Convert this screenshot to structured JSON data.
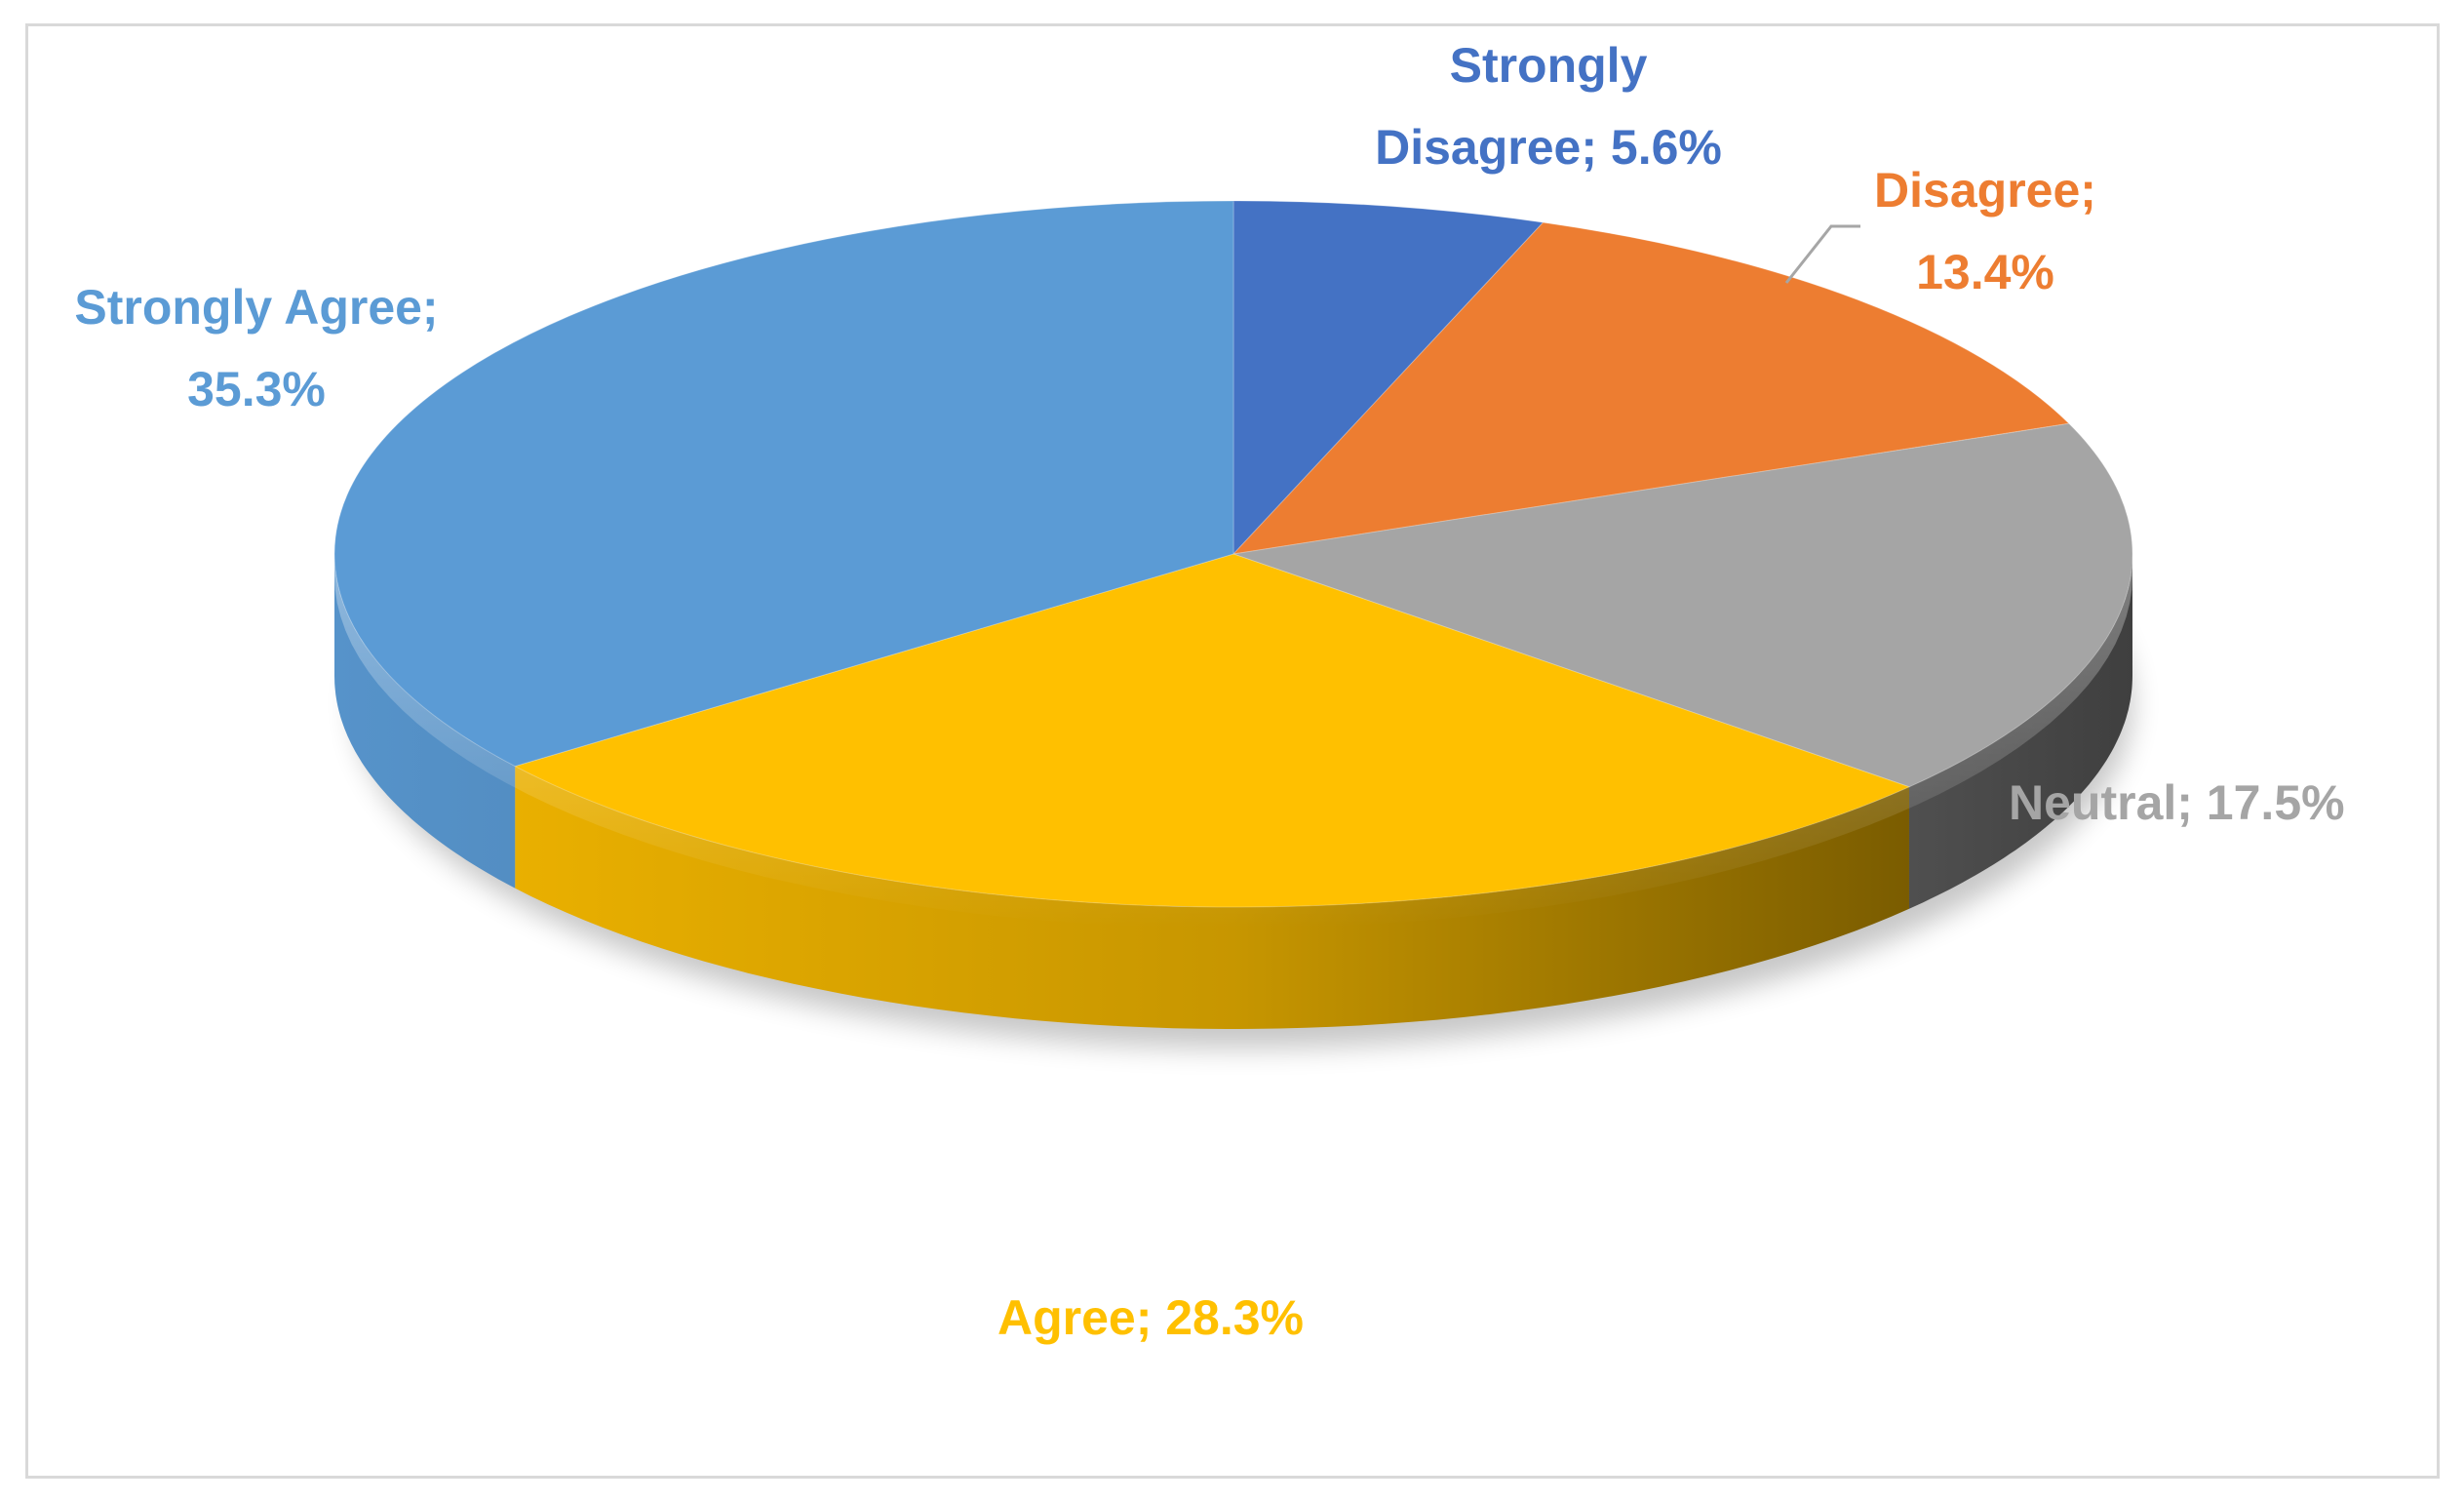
{
  "chart_data": {
    "type": "pie",
    "style": "3d",
    "title": "",
    "separator": "; ",
    "categories": [
      "Strongly Disagree",
      "Disagree",
      "Neutral",
      "Agree",
      "Strongly Agree"
    ],
    "values": [
      5.6,
      13.4,
      17.5,
      28.3,
      35.3
    ],
    "value_labels": [
      "5.6%",
      "13.4%",
      "17.5%",
      "28.3%",
      "35.3%"
    ],
    "colors": [
      "#4472c4",
      "#ed7d31",
      "#a5a5a5",
      "#ffc000",
      "#5b9bd5"
    ],
    "label_colors": [
      "#4472c4",
      "#ed7d31",
      "#a5a5a5",
      "#ffc000",
      "#5b9bd5"
    ],
    "leader_line_color": "#a6a6a6",
    "legend": "none"
  }
}
